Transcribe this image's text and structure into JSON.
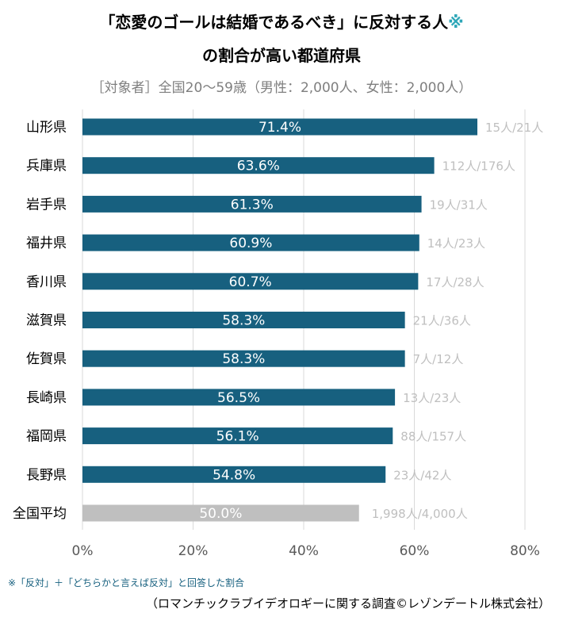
{
  "title": {
    "line1": "「恋愛のゴールは結婚であるべき」に反対する人",
    "mark": "※",
    "line2": "の割合が高い都道府県"
  },
  "subtitle": "［対象者］全国20～59歳（男性：2,000人、女性：2,000人）",
  "footnote": "※「反対」＋「どちらかと言えば反対」と回答した割合",
  "source": "（ロマンチックラブイデオロギーに関する調査©レゾンデートル株式会社）",
  "colors": {
    "bar": "#17607f",
    "national_bar": "#bfbfbf",
    "count_label": "#bfbfbf",
    "grid": "#d9d9d9",
    "title_mark": "#2ea7b8"
  },
  "chart_data": {
    "type": "bar",
    "orientation": "horizontal",
    "title": "「恋愛のゴールは結婚であるべき」に反対する人※の割合が高い都道府県",
    "categories": [
      "山形県",
      "兵庫県",
      "岩手県",
      "福井県",
      "香川県",
      "滋賀県",
      "佐賀県",
      "長崎県",
      "福岡県",
      "長野県",
      "全国平均"
    ],
    "values": [
      71.4,
      63.6,
      61.3,
      60.9,
      60.7,
      58.3,
      58.3,
      56.5,
      56.1,
      54.8,
      50.0
    ],
    "value_labels": [
      "71.4%",
      "63.6%",
      "61.3%",
      "60.9%",
      "60.7%",
      "58.3%",
      "58.3%",
      "56.5%",
      "56.1%",
      "54.8%",
      "50.0%"
    ],
    "count_labels": [
      "15人/21人",
      "112人/176人",
      "19人/31人",
      "14人/23人",
      "17人/28人",
      "21人/36人",
      "7人/12人",
      "13人/23人",
      "88人/157人",
      "23人/42人",
      "1,998人/4,000人"
    ],
    "xlim": [
      0,
      80
    ],
    "xticks": [
      0,
      20,
      40,
      60,
      80
    ],
    "xtick_labels": [
      "0%",
      "20%",
      "40%",
      "60%",
      "80%"
    ],
    "xlabel": "",
    "ylabel": "",
    "grid": true
  }
}
